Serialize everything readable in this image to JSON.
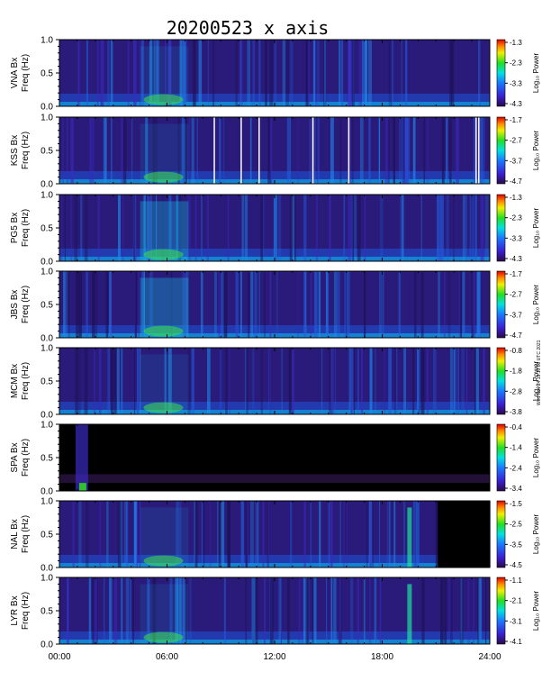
{
  "chart_data": {
    "type": "heatmap",
    "title": "20200523 x axis",
    "timestamp": "Wed Nov 24 19:10:08 UTC 2021",
    "xlim_hours": [
      0,
      24
    ],
    "x_tick_labels": [
      "00:00",
      "06:00",
      "12:00",
      "18:00",
      "24:00"
    ],
    "ylim": [
      0.0,
      1.0
    ],
    "y_tick_labels": [
      "1.0",
      "0.5",
      "0.0"
    ],
    "freq_label": "Freq (Hz)",
    "colorbar_label": "Log₁₀ Power",
    "panels": [
      {
        "station": "VNA Bx",
        "clim": [
          -4.3,
          -1.3
        ],
        "cb_ticks": [
          "-1.3",
          "-2.3",
          "-3.3",
          "-4.3"
        ]
      },
      {
        "station": "KSS Bx",
        "clim": [
          -4.7,
          -1.7
        ],
        "cb_ticks": [
          "-1.7",
          "-2.7",
          "-3.7",
          "-4.7"
        ]
      },
      {
        "station": "PG5 Bx",
        "clim": [
          -4.3,
          -1.3
        ],
        "cb_ticks": [
          "-1.3",
          "-2.3",
          "-3.3",
          "-4.3"
        ]
      },
      {
        "station": "JBS Bx",
        "clim": [
          -4.7,
          -1.7
        ],
        "cb_ticks": [
          "-1.7",
          "-2.7",
          "-3.7",
          "-4.7"
        ]
      },
      {
        "station": "MCM Bx",
        "clim": [
          -3.8,
          -0.8
        ],
        "cb_ticks": [
          "-0.8",
          "-1.8",
          "-2.8",
          "-3.8"
        ]
      },
      {
        "station": "SPA Bx",
        "clim": [
          -3.4,
          -0.4
        ],
        "cb_ticks": [
          "-0.4",
          "-1.4",
          "-2.4",
          "-3.4"
        ]
      },
      {
        "station": "NAL Bx",
        "clim": [
          -4.5,
          -1.5
        ],
        "cb_ticks": [
          "-1.5",
          "-2.5",
          "-3.5",
          "-4.5"
        ]
      },
      {
        "station": "LYR Bx",
        "clim": [
          -4.1,
          -1.1
        ],
        "cb_ticks": [
          "-1.1",
          "-2.1",
          "-3.1",
          "-4.1"
        ]
      }
    ]
  }
}
